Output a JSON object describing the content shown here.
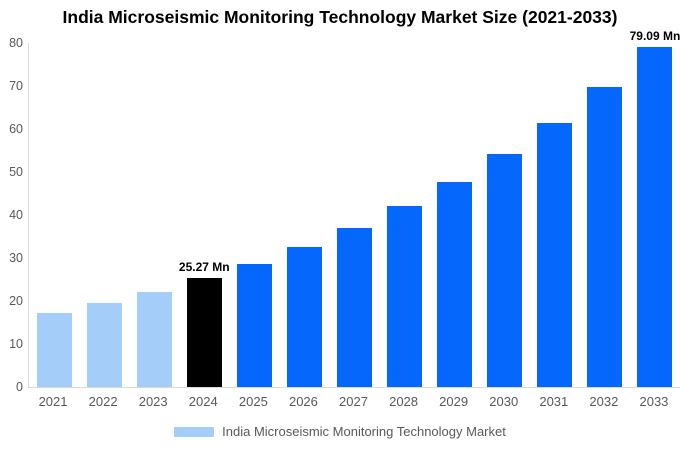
{
  "page": {
    "background_color": "#ffffff"
  },
  "chart_data": {
    "type": "bar",
    "title": "India Microseismic Monitoring Technology Market Size (2021-2033)",
    "xlabel": "",
    "ylabel": "",
    "unit": "Mn",
    "categories": [
      "2021",
      "2022",
      "2023",
      "2024",
      "2025",
      "2026",
      "2027",
      "2028",
      "2029",
      "2030",
      "2031",
      "2032",
      "2033"
    ],
    "values": [
      17.1,
      19.5,
      22.1,
      25.27,
      28.7,
      32.6,
      37.0,
      42.0,
      47.6,
      54.1,
      61.4,
      69.7,
      79.09
    ],
    "bar_colors": [
      "#a5cdfa",
      "#a5cdfa",
      "#a5cdfa",
      "#000000",
      "#0667fd",
      "#0667fd",
      "#0667fd",
      "#0667fd",
      "#0667fd",
      "#0667fd",
      "#0667fd",
      "#0667fd",
      "#0667fd"
    ],
    "annotations": [
      {
        "index": 3,
        "text": "25.27 Mn"
      },
      {
        "index": 12,
        "text": "79.09 Mn"
      }
    ],
    "ylim": [
      0,
      80
    ],
    "yticks": [
      0,
      10,
      20,
      30,
      40,
      50,
      60,
      70,
      80
    ],
    "grid": false,
    "legend_position": "bottom",
    "legend": {
      "label": "India Microseismic Monitoring Technology Market",
      "swatch_color": "#a5cdfa"
    },
    "colors": {
      "historical": "#a5cdfa",
      "base_year": "#000000",
      "forecast": "#0667fd",
      "axis_text": "#595959",
      "axis_line": "#d9d9d9",
      "title_text": "#000000"
    }
  }
}
